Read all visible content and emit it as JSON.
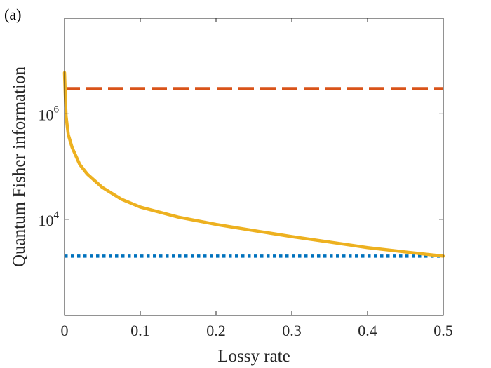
{
  "panel_label": "(a)",
  "chart_data": {
    "type": "line",
    "xlabel": "Lossy rate",
    "ylabel": "Quantum Fisher information",
    "xlim": [
      0,
      0.5
    ],
    "ylim": [
      150,
      65000000
    ],
    "yscale": "log",
    "grid": false,
    "legend": "none",
    "x_ticks": [
      0,
      0.1,
      0.2,
      0.3,
      0.4,
      0.5
    ],
    "x_tick_labels": [
      "0",
      "0.1",
      "0.2",
      "0.3",
      "0.4",
      "0.5"
    ],
    "y_ticks": [
      10000,
      1000000
    ],
    "y_tick_labels": [
      {
        "base": "10",
        "exp": "4"
      },
      {
        "base": "10",
        "exp": "6"
      }
    ],
    "series": [
      {
        "style": "dashed",
        "color": "#D95319",
        "x": [
          0,
          0.5
        ],
        "y": [
          3000000,
          3000000
        ]
      },
      {
        "style": "dotted",
        "color": "#0072BD",
        "x": [
          0,
          0.5
        ],
        "y": [
          2000,
          2000
        ]
      },
      {
        "style": "solid",
        "color": "#EDB120",
        "x": [
          0,
          0.002,
          0.005,
          0.01,
          0.02,
          0.03,
          0.05,
          0.075,
          0.1,
          0.15,
          0.2,
          0.25,
          0.3,
          0.35,
          0.4,
          0.45,
          0.5
        ],
        "y": [
          6000000,
          900000,
          400000,
          230000,
          110000,
          72000,
          40000,
          24000,
          17000,
          11000,
          8000,
          6100,
          4700,
          3700,
          2900,
          2400,
          2000
        ]
      }
    ]
  }
}
